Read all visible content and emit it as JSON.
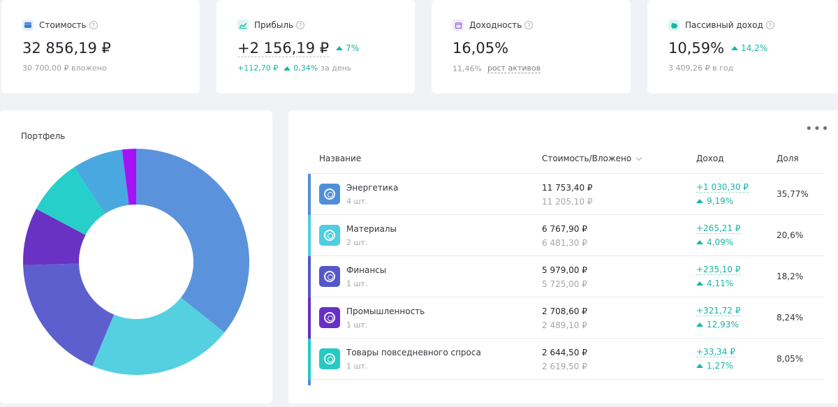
{
  "summary": [
    {
      "title": "Стоимость",
      "icon": "wallet-icon",
      "color": "#3b7ddd",
      "value": "32 856,19 ₽",
      "sub": "30 700,00 ₽ вложено"
    },
    {
      "title": "Прибыль",
      "icon": "chart-icon",
      "color": "#17b5a5",
      "value": "+2 156,19 ₽",
      "change": "7%",
      "sub_value": "+112,70 ₽",
      "sub_change": "0,34%",
      "sub_note": "за день"
    },
    {
      "title": "Доходность",
      "icon": "calendar-icon",
      "color": "#8a63d2",
      "value": "16,05%",
      "sub_value": "11,46%",
      "sub_link": "рост активов"
    },
    {
      "title": "Пассивный доход",
      "icon": "piggy-bank-icon",
      "color": "#17b5a5",
      "value": "10,59%",
      "change": "14,2%",
      "sub": "3 409,26 ₽ в год"
    }
  ],
  "portfolio": {
    "title": "Портфель"
  },
  "chart_data": {
    "type": "pie",
    "categories": [
      "Энергетика",
      "Материалы",
      "Финансы",
      "Промышленность",
      "Товары повседневного спроса",
      "",
      "",
      ""
    ],
    "values": [
      35.77,
      20.6,
      18.2,
      8.24,
      8.05,
      7.2,
      2.0,
      0
    ],
    "colors": [
      "#5a93db",
      "#55d0e0",
      "#5d5fce",
      "#6931c4",
      "#27cfcb",
      "#4aa8e0",
      "#a413f5",
      "#cccccc"
    ]
  },
  "table": {
    "headers": {
      "name": "Название",
      "value": "Стоимость/Вложено",
      "income": "Доход",
      "share": "Доля"
    },
    "rows": [
      {
        "name": "Энергетика",
        "qty": "4 шт.",
        "value": "11 753,40 ₽",
        "invested": "11 205,10 ₽",
        "income": "+1 030,30 ₽",
        "income_pct": "9,19%",
        "share": "35,77%",
        "color": "#4f8fd9"
      },
      {
        "name": "Материалы",
        "qty": "2 шт.",
        "value": "6 767,90 ₽",
        "invested": "6 481,30 ₽",
        "income": "+265,21 ₽",
        "income_pct": "4,09%",
        "share": "20,6%",
        "color": "#50cde0"
      },
      {
        "name": "Финансы",
        "qty": "1 шт.",
        "value": "5 979,00 ₽",
        "invested": "5 725,00 ₽",
        "income": "+235,10 ₽",
        "income_pct": "4,11%",
        "share": "18,2%",
        "color": "#5557c9"
      },
      {
        "name": "Промышленность",
        "qty": "1 шт.",
        "value": "2 708,60 ₽",
        "invested": "2 489,10 ₽",
        "income": "+321,72 ₽",
        "income_pct": "12,93%",
        "share": "8,24%",
        "color": "#6630c4"
      },
      {
        "name": "Товары повседневного спроса",
        "qty": "1 шт.",
        "value": "2 644,50 ₽",
        "invested": "2 619,50 ₽",
        "income": "+33,34 ₽",
        "income_pct": "1,27%",
        "share": "8,05%",
        "color": "#27c9c4"
      }
    ]
  }
}
